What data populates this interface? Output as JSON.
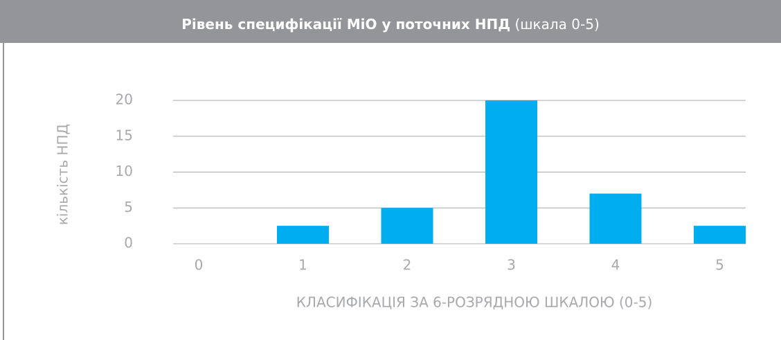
{
  "chart_data": {
    "type": "bar",
    "title": "Рівень специфікації МіО у поточних НПД",
    "subtitle": "(шкала 0-5)",
    "x_label": "КЛАСИФІКАЦІЯ ЗА 6-РОЗРЯДНОЮ ШКАЛОЮ (0-5)",
    "y_label": "кількість НПД",
    "categories": [
      "0",
      "1",
      "2",
      "3",
      "4",
      "5"
    ],
    "values": [
      0,
      2.5,
      5,
      20,
      7,
      2.5
    ],
    "color": "#00aeef",
    "ylim": [
      0,
      20
    ],
    "yticks": [
      0,
      5,
      10,
      15,
      20
    ],
    "grid": true
  }
}
